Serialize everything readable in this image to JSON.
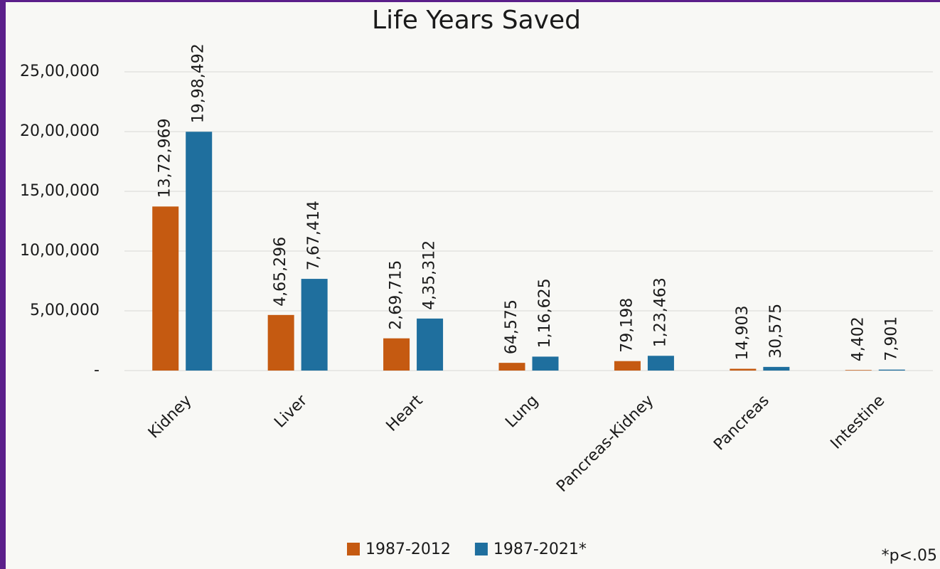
{
  "chart_data": {
    "type": "bar",
    "title": "Life Years Saved",
    "categories": [
      "Kidney",
      "Liver",
      "Heart",
      "Lung",
      "Pancreas-Kidney",
      "Pancreas",
      "Intestine"
    ],
    "series": [
      {
        "name": "1987-2012",
        "color": "#c55a11",
        "values": [
          1372969,
          465296,
          269715,
          64575,
          79198,
          14903,
          4402
        ],
        "value_labels": [
          "13,72,969",
          "4,65,296",
          "2,69,715",
          "64,575",
          "79,198",
          "14,903",
          "4,402"
        ]
      },
      {
        "name": "1987-2021*",
        "color": "#1f6f9e",
        "values": [
          1998492,
          767414,
          435312,
          116625,
          123463,
          30575,
          7901
        ],
        "value_labels": [
          "19,98,492",
          "7,67,414",
          "4,35,312",
          "1,16,625",
          "1,23,463",
          "30,575",
          "7,901"
        ]
      }
    ],
    "ylim": [
      0,
      2500000
    ],
    "yticks": [
      {
        "value": 0,
        "label": "-"
      },
      {
        "value": 500000,
        "label": "5,00,000"
      },
      {
        "value": 1000000,
        "label": "10,00,000"
      },
      {
        "value": 1500000,
        "label": "15,00,000"
      },
      {
        "value": 2000000,
        "label": "20,00,000"
      },
      {
        "value": 2500000,
        "label": "25,00,000"
      }
    ],
    "grid": true,
    "legend": "bottom",
    "note": "*p<.05"
  }
}
